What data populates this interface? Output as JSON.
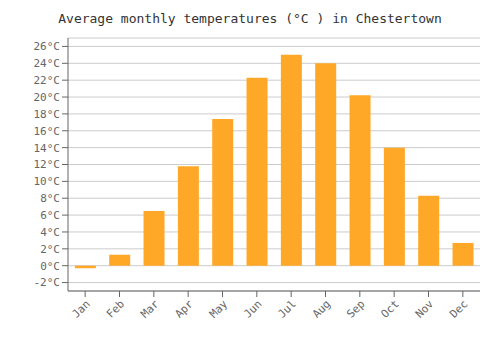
{
  "chart_data": {
    "type": "bar",
    "title": "Average monthly temperatures (°C ) in Chestertown",
    "categories": [
      "Jan",
      "Feb",
      "Mar",
      "Apr",
      "May",
      "Jun",
      "Jul",
      "Aug",
      "Sep",
      "Oct",
      "Nov",
      "Dec"
    ],
    "values": [
      -0.3,
      1.3,
      6.5,
      11.8,
      17.4,
      22.3,
      25.0,
      24.0,
      20.2,
      14.0,
      8.3,
      2.7
    ],
    "color": "#FFA726",
    "ylim": [
      -3,
      27
    ],
    "yticks": [
      {
        "value": -2,
        "label": "-2°C"
      },
      {
        "value": 0,
        "label": "0°C"
      },
      {
        "value": 2,
        "label": "2°C"
      },
      {
        "value": 4,
        "label": "4°C"
      },
      {
        "value": 6,
        "label": "6°C"
      },
      {
        "value": 8,
        "label": "8°C"
      },
      {
        "value": 10,
        "label": "10°C"
      },
      {
        "value": 12,
        "label": "12°C"
      },
      {
        "value": 14,
        "label": "14°C"
      },
      {
        "value": 16,
        "label": "16°C"
      },
      {
        "value": 18,
        "label": "18°C"
      },
      {
        "value": 20,
        "label": "20°C"
      },
      {
        "value": 22,
        "label": "22°C"
      },
      {
        "value": 24,
        "label": "24°C"
      },
      {
        "value": 26,
        "label": "26°C"
      }
    ],
    "grid": true
  }
}
